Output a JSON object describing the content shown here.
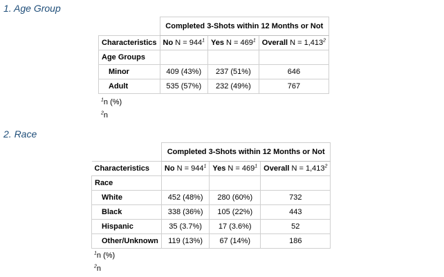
{
  "sections": [
    {
      "title": "1. Age Group",
      "spanning_header": "Completed 3-Shots within 12 Months or Not",
      "characteristics_label": "Characteristics",
      "columns": [
        {
          "bold": "No",
          "text": "N = 944",
          "footnote": "1"
        },
        {
          "bold": "Yes",
          "text": "N = 469",
          "footnote": "1"
        },
        {
          "bold": "Overall",
          "text": "N = 1,413",
          "footnote": "2"
        }
      ],
      "group_label": "Age Groups",
      "rows": [
        {
          "label": "Minor",
          "no": "409 (43%)",
          "yes": "237 (51%)",
          "overall": "646"
        },
        {
          "label": "Adult",
          "no": "535 (57%)",
          "yes": "232 (49%)",
          "overall": "767"
        }
      ],
      "footnotes": [
        {
          "mark": "1",
          "text": "n (%)"
        },
        {
          "mark": "2",
          "text": "n"
        }
      ]
    },
    {
      "title": "2. Race",
      "spanning_header": "Completed 3-Shots within 12 Months or Not",
      "characteristics_label": "Characteristics",
      "columns": [
        {
          "bold": "No",
          "text": "N = 944",
          "footnote": "1"
        },
        {
          "bold": "Yes",
          "text": "N = 469",
          "footnote": "1"
        },
        {
          "bold": "Overall",
          "text": "N = 1,413",
          "footnote": "2"
        }
      ],
      "group_label": "Race",
      "rows": [
        {
          "label": "White",
          "no": "452 (48%)",
          "yes": "280 (60%)",
          "overall": "732"
        },
        {
          "label": "Black",
          "no": "338 (36%)",
          "yes": "105 (22%)",
          "overall": "443"
        },
        {
          "label": "Hispanic",
          "no": "35 (3.7%)",
          "yes": "17 (3.6%)",
          "overall": "52"
        },
        {
          "label": "Other/Unknown",
          "no": "119 (13%)",
          "yes": "67 (14%)",
          "overall": "186"
        }
      ],
      "footnotes": [
        {
          "mark": "1",
          "text": "n (%)"
        },
        {
          "mark": "2",
          "text": "n"
        }
      ]
    }
  ]
}
